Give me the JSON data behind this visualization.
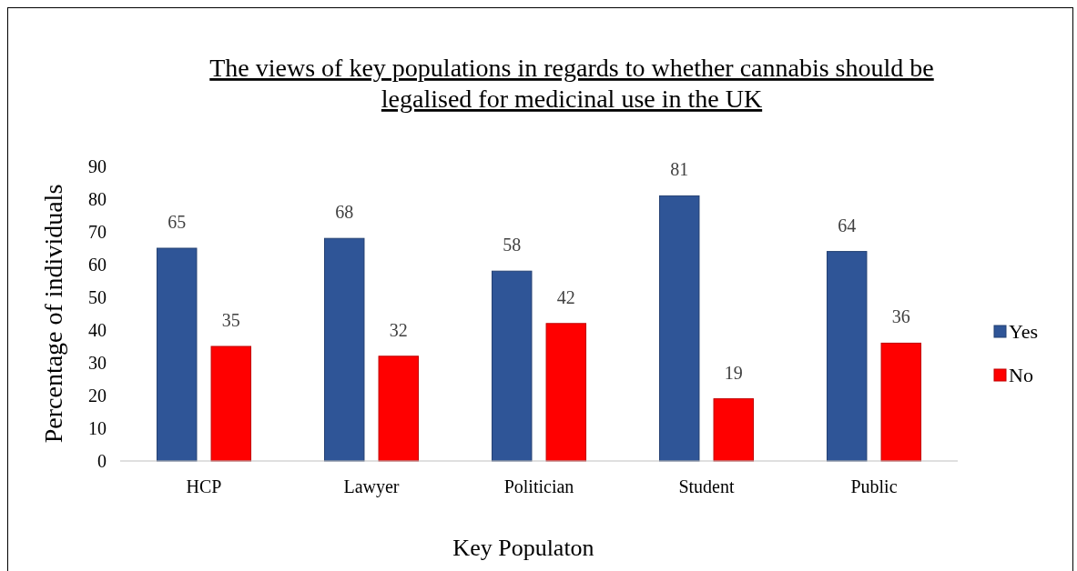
{
  "chart_data": {
    "type": "bar",
    "title": "The views of key populations in regards to whether cannabis should be legalised for medicinal use in the UK",
    "xlabel": "Key Populaton",
    "ylabel": "Percentage of individuals",
    "categories": [
      "HCP",
      "Lawyer",
      "Politician",
      "Student",
      "Public"
    ],
    "series": [
      {
        "name": "Yes",
        "color": "#2f5597",
        "values": [
          65,
          68,
          58,
          81,
          64
        ]
      },
      {
        "name": "No",
        "color": "#ff0000",
        "values": [
          35,
          32,
          42,
          19,
          36
        ]
      }
    ],
    "ylim": [
      0,
      90
    ],
    "yticks": [
      0,
      10,
      20,
      30,
      40,
      50,
      60,
      70,
      80,
      90
    ],
    "grid": false,
    "legend": "right",
    "data_labels": true
  }
}
